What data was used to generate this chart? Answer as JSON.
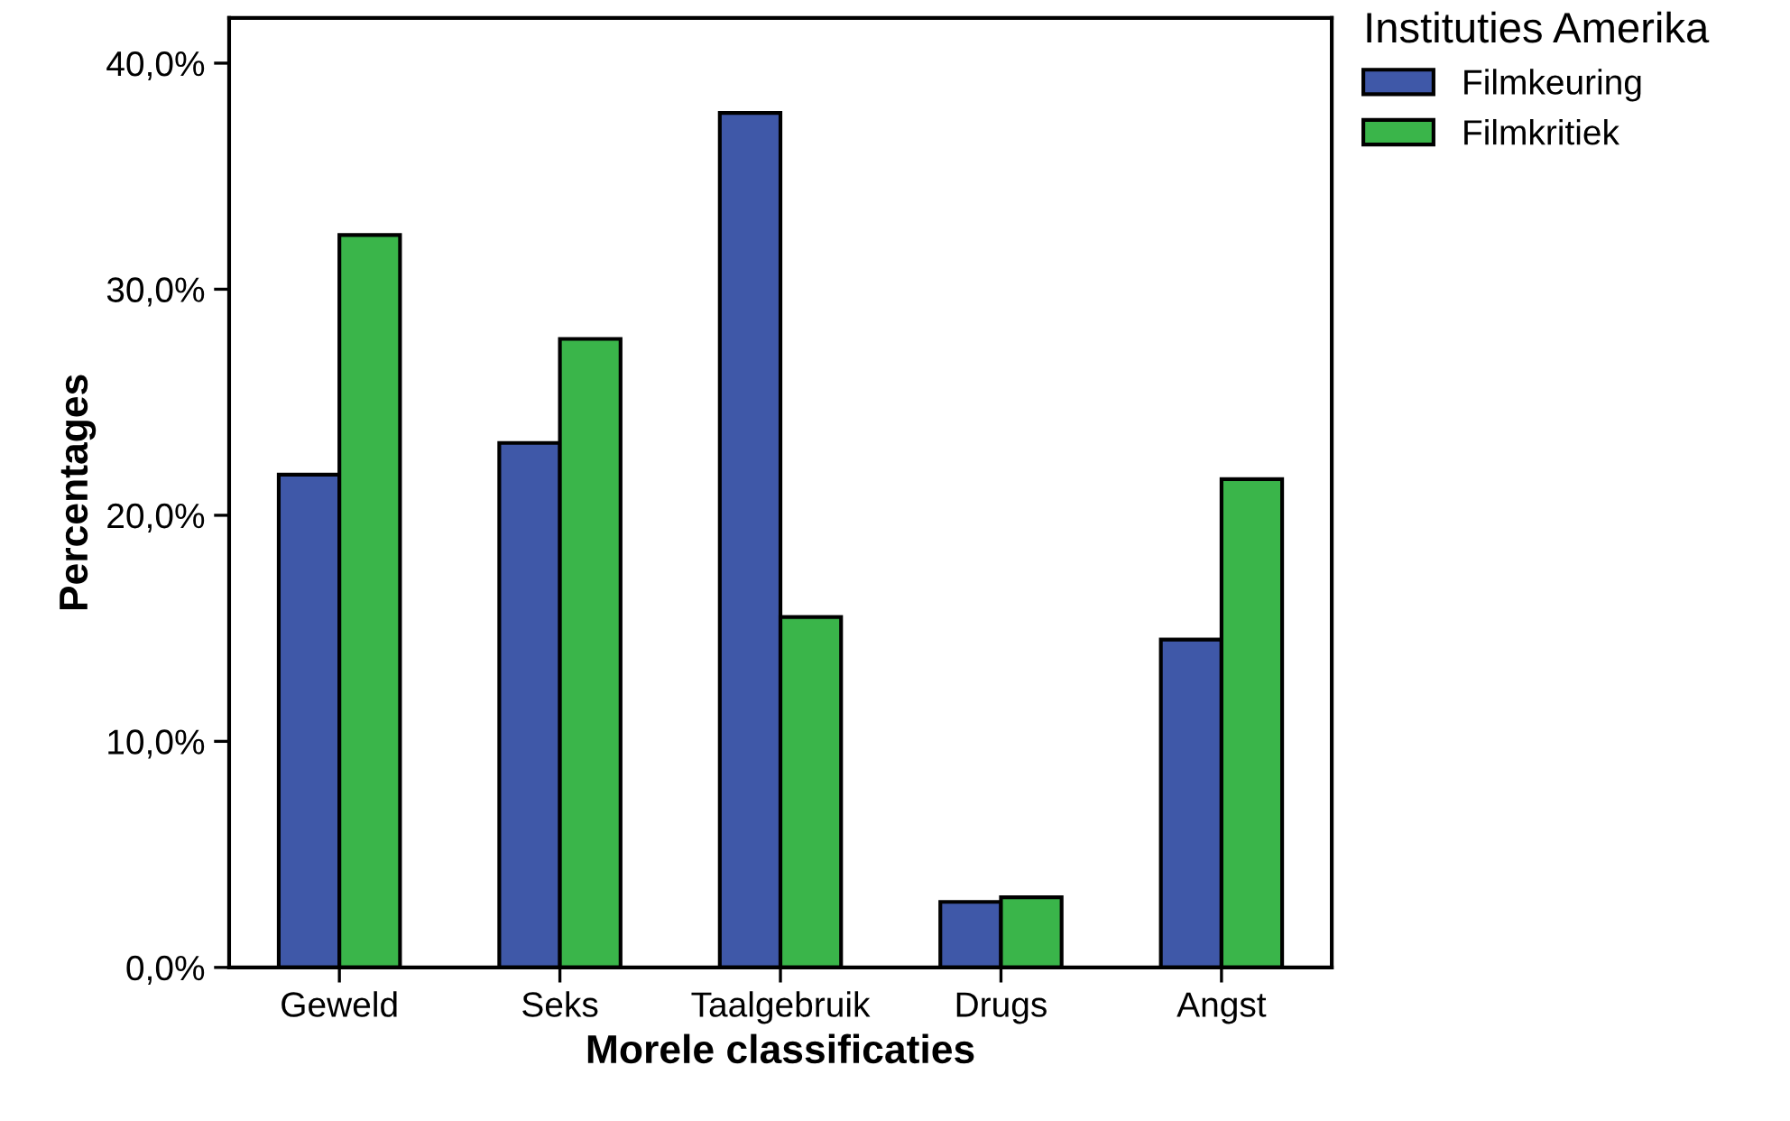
{
  "chart_data": {
    "type": "bar",
    "xlabel": "Morele classificaties",
    "ylabel": "Percentages",
    "legend_title": "Instituties Amerika",
    "categories": [
      "Geweld",
      "Seks",
      "Taalgebruik",
      "Drugs",
      "Angst"
    ],
    "series": [
      {
        "name": "Filmkeuring",
        "color": "#3f58a8",
        "values": [
          21.8,
          23.2,
          37.8,
          2.9,
          14.5
        ]
      },
      {
        "name": "Filmkritiek",
        "color": "#3ab54a",
        "values": [
          32.4,
          27.8,
          15.5,
          3.1,
          21.6
        ]
      }
    ],
    "ylim": [
      0,
      42
    ],
    "yticks": [
      {
        "value": 0,
        "label": "0,0%"
      },
      {
        "value": 10,
        "label": "10,0%"
      },
      {
        "value": 20,
        "label": "20,0%"
      },
      {
        "value": 30,
        "label": "30,0%"
      },
      {
        "value": 40,
        "label": "40,0%"
      }
    ],
    "grid": false,
    "legend": "right"
  }
}
